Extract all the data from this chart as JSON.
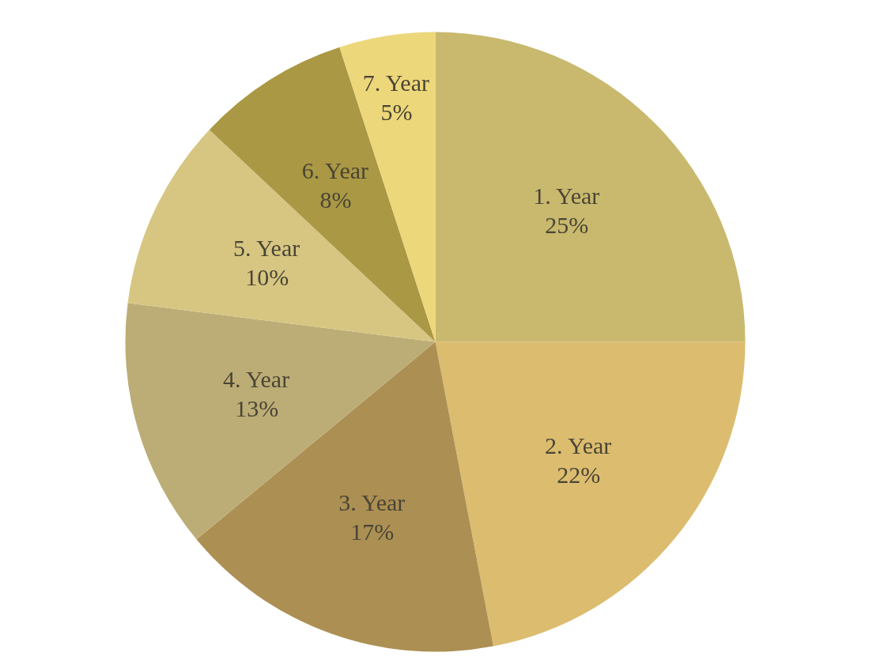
{
  "chart_data": {
    "type": "pie",
    "categories": [
      "1. Year",
      "2. Year",
      "3. Year",
      "4. Year",
      "5. Year",
      "6. Year",
      "7. Year"
    ],
    "values": [
      25,
      22,
      17,
      13,
      10,
      8,
      5
    ],
    "value_labels": [
      "25%",
      "22%",
      "17%",
      "13%",
      "10%",
      "8%",
      "5%"
    ],
    "colors": [
      "#c9b96e",
      "#dcbc6f",
      "#ac8f53",
      "#bcad76",
      "#d7c682",
      "#aa9844",
      "#edd77b"
    ]
  }
}
